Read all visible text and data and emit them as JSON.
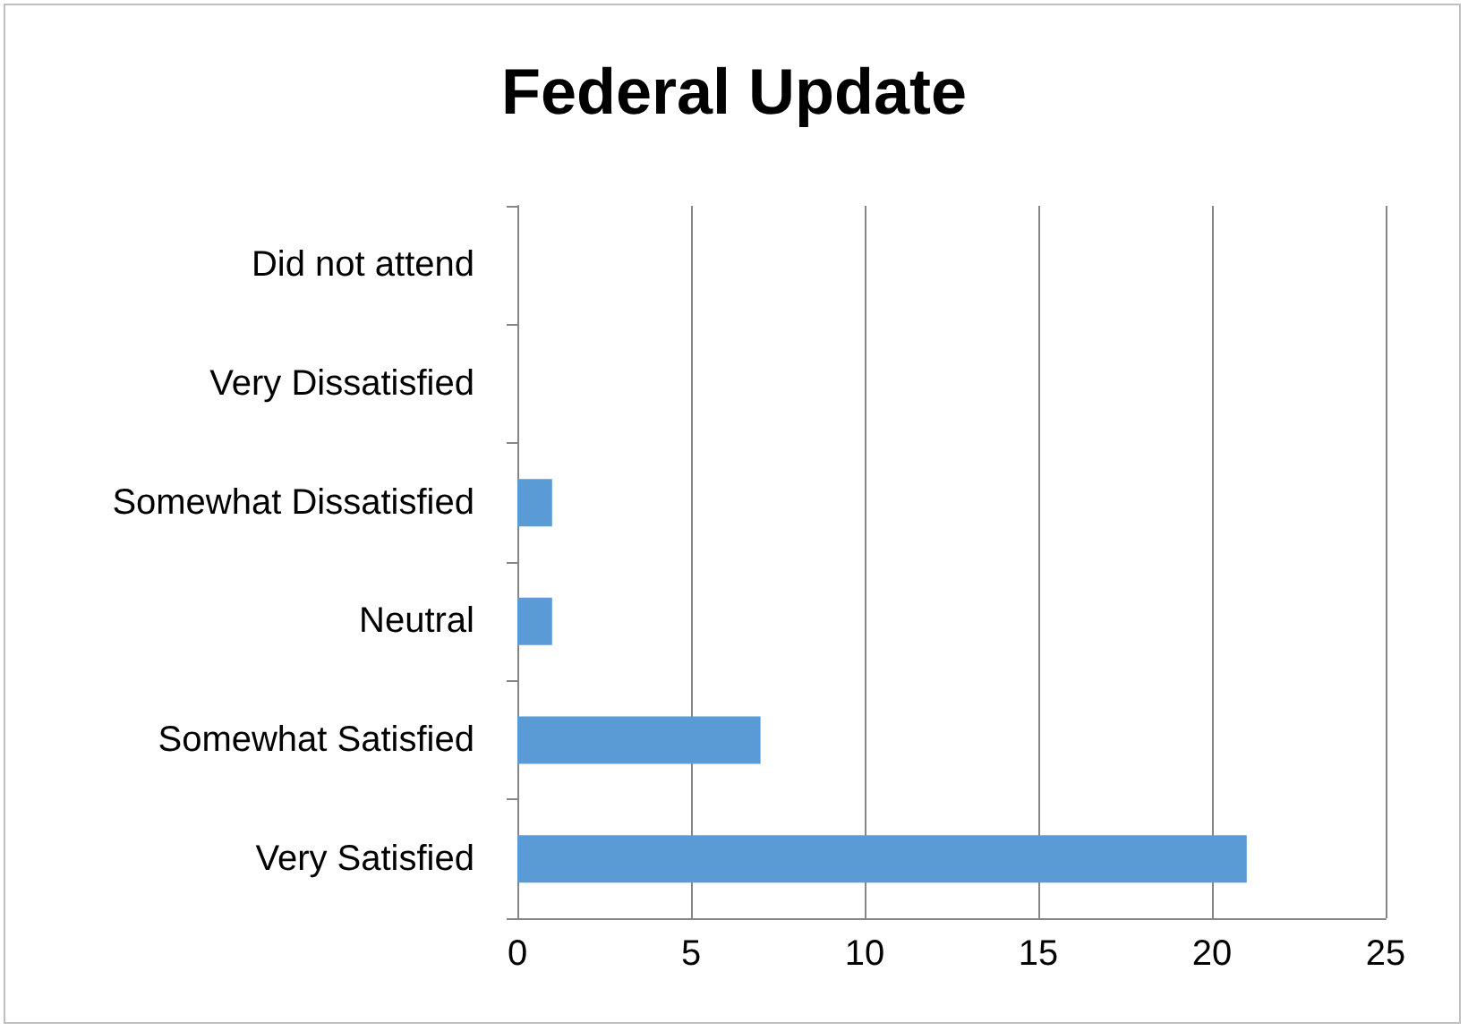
{
  "chart_data": {
    "type": "bar",
    "orientation": "horizontal",
    "title": "Federal Update",
    "categories": [
      "Did not attend",
      "Very Dissatisfied",
      "Somewhat Dissatisfied",
      "Neutral",
      "Somewhat Satisfied",
      "Very Satisfied"
    ],
    "values": [
      0,
      0,
      1,
      1,
      7,
      21
    ],
    "color": "#5b9bd5",
    "xlim": [
      0,
      25
    ],
    "xticks": [
      0,
      5,
      10,
      15,
      20,
      25
    ],
    "grid": "x"
  }
}
